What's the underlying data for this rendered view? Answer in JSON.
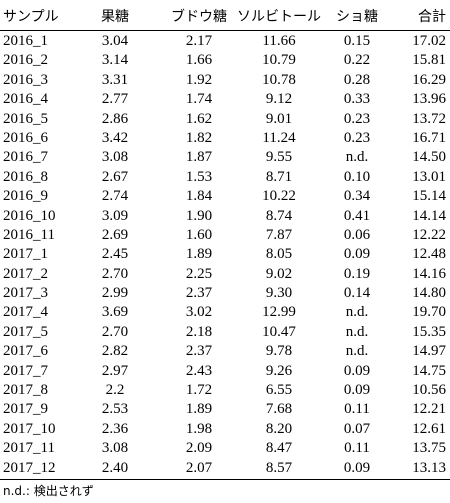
{
  "table": {
    "header": [
      "サンプル",
      "果糖",
      "ブドウ糖",
      "ソルビトール",
      "ショ糖",
      "合計"
    ],
    "rows": [
      [
        "2016_1",
        "3.04",
        "2.17",
        "11.66",
        "0.15",
        "17.02"
      ],
      [
        "2016_2",
        "3.14",
        "1.66",
        "10.79",
        "0.22",
        "15.81"
      ],
      [
        "2016_3",
        "3.31",
        "1.92",
        "10.78",
        "0.28",
        "16.29"
      ],
      [
        "2016_4",
        "2.77",
        "1.74",
        "9.12",
        "0.33",
        "13.96"
      ],
      [
        "2016_5",
        "2.86",
        "1.62",
        "9.01",
        "0.23",
        "13.72"
      ],
      [
        "2016_6",
        "3.42",
        "1.82",
        "11.24",
        "0.23",
        "16.71"
      ],
      [
        "2016_7",
        "3.08",
        "1.87",
        "9.55",
        "n.d.",
        "14.50"
      ],
      [
        "2016_8",
        "2.67",
        "1.53",
        "8.71",
        "0.10",
        "13.01"
      ],
      [
        "2016_9",
        "2.74",
        "1.84",
        "10.22",
        "0.34",
        "15.14"
      ],
      [
        "2016_10",
        "3.09",
        "1.90",
        "8.74",
        "0.41",
        "14.14"
      ],
      [
        "2016_11",
        "2.69",
        "1.60",
        "7.87",
        "0.06",
        "12.22"
      ],
      [
        "2017_1",
        "2.45",
        "1.89",
        "8.05",
        "0.09",
        "12.48"
      ],
      [
        "2017_2",
        "2.70",
        "2.25",
        "9.02",
        "0.19",
        "14.16"
      ],
      [
        "2017_3",
        "2.99",
        "2.37",
        "9.30",
        "0.14",
        "14.80"
      ],
      [
        "2017_4",
        "3.69",
        "3.02",
        "12.99",
        "n.d.",
        "19.70"
      ],
      [
        "2017_5",
        "2.70",
        "2.18",
        "10.47",
        "n.d.",
        "15.35"
      ],
      [
        "2017_6",
        "2.82",
        "2.37",
        "9.78",
        "n.d.",
        "14.97"
      ],
      [
        "2017_7",
        "2.97",
        "2.43",
        "9.26",
        "0.09",
        "14.75"
      ],
      [
        "2017_8",
        "2.2",
        "1.72",
        "6.55",
        "0.09",
        "10.56"
      ],
      [
        "2017_9",
        "2.53",
        "1.89",
        "7.68",
        "0.11",
        "12.21"
      ],
      [
        "2017_10",
        "2.36",
        "1.98",
        "8.20",
        "0.07",
        "12.61"
      ],
      [
        "2017_11",
        "3.08",
        "2.09",
        "8.47",
        "0.11",
        "13.75"
      ],
      [
        "2017_12",
        "2.40",
        "2.07",
        "8.57",
        "0.09",
        "13.13"
      ]
    ],
    "footnote": "n.d.: 検出されず"
  }
}
